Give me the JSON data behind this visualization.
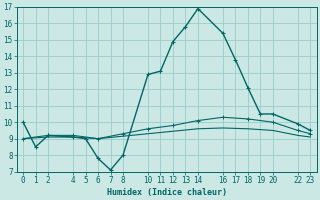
{
  "xlabel": "Humidex (Indice chaleur)",
  "bg_color": "#cce8e4",
  "grid_color": "#99cccc",
  "line_color": "#006666",
  "ylim": [
    7,
    17
  ],
  "xlim": [
    -0.5,
    23.5
  ],
  "yticks": [
    7,
    8,
    9,
    10,
    11,
    12,
    13,
    14,
    15,
    16,
    17
  ],
  "xticks": [
    0,
    1,
    2,
    4,
    5,
    6,
    7,
    8,
    10,
    11,
    12,
    13,
    14,
    16,
    17,
    18,
    19,
    20,
    22,
    23
  ],
  "series1_x": [
    0,
    1,
    2,
    4,
    5,
    6,
    7,
    8,
    10,
    11,
    12,
    13,
    14,
    16,
    17,
    18,
    19,
    20,
    22,
    23
  ],
  "series1_y": [
    10.0,
    8.5,
    9.2,
    9.1,
    9.0,
    7.8,
    7.1,
    8.0,
    12.9,
    13.1,
    14.9,
    15.8,
    16.9,
    15.4,
    13.8,
    12.1,
    10.5,
    10.5,
    9.9,
    9.5
  ],
  "series2_x": [
    0,
    2,
    4,
    6,
    8,
    10,
    12,
    14,
    16,
    18,
    20,
    22,
    23
  ],
  "series2_y": [
    9.0,
    9.2,
    9.2,
    9.0,
    9.3,
    9.6,
    9.8,
    10.1,
    10.3,
    10.2,
    10.0,
    9.5,
    9.3
  ],
  "series3_x": [
    0,
    2,
    4,
    6,
    8,
    10,
    12,
    14,
    16,
    18,
    20,
    22,
    23
  ],
  "series3_y": [
    9.0,
    9.1,
    9.1,
    9.0,
    9.15,
    9.3,
    9.45,
    9.6,
    9.65,
    9.6,
    9.5,
    9.2,
    9.1
  ]
}
